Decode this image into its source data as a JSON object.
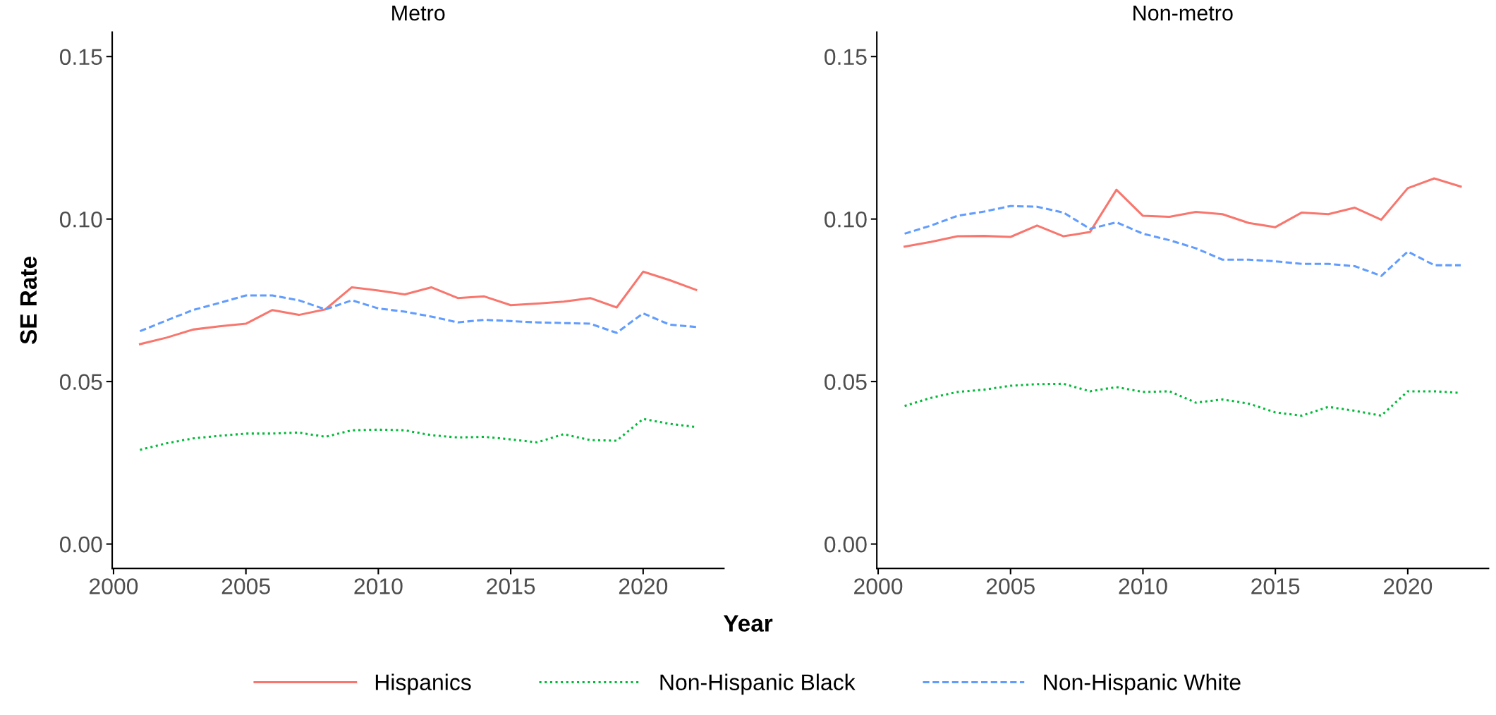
{
  "chart_data": [
    {
      "type": "line",
      "title": "Metro",
      "xlabel": "Year",
      "ylabel": "SE Rate",
      "x": [
        2001,
        2002,
        2003,
        2004,
        2005,
        2006,
        2007,
        2008,
        2009,
        2010,
        2011,
        2012,
        2013,
        2014,
        2015,
        2016,
        2017,
        2018,
        2019,
        2020,
        2021,
        2022
      ],
      "xlim": [
        1999.95,
        2023.05
      ],
      "xticks": [
        2000,
        2005,
        2010,
        2015,
        2020
      ],
      "ylim": [
        -0.0075,
        0.1575
      ],
      "yticks": [
        {
          "value": 0,
          "label": "0.00"
        },
        {
          "value": 0.05,
          "label": "0.05"
        },
        {
          "value": 0.1,
          "label": "0.10"
        },
        {
          "value": 0.15,
          "label": "0.15"
        }
      ],
      "grid": false,
      "legend": "bottom",
      "marker": "none",
      "series": [
        {
          "name": "Hispanics",
          "color": "#f8766d",
          "line_style": "solid",
          "values": [
            0.0615,
            0.0635,
            0.066,
            0.067,
            0.0678,
            0.072,
            0.0705,
            0.0722,
            0.079,
            0.078,
            0.0768,
            0.079,
            0.0757,
            0.0762,
            0.0735,
            0.074,
            0.0746,
            0.0757,
            0.0728,
            0.0838,
            0.0812,
            0.0782
          ]
        },
        {
          "name": "Non-Hispanic Black",
          "color": "#00ba38",
          "line_style": "dotted",
          "values": [
            0.029,
            0.031,
            0.0325,
            0.0333,
            0.034,
            0.034,
            0.0343,
            0.033,
            0.035,
            0.0352,
            0.035,
            0.0335,
            0.0328,
            0.033,
            0.0322,
            0.0313,
            0.0338,
            0.032,
            0.0318,
            0.0385,
            0.037,
            0.036
          ]
        },
        {
          "name": "Non-Hispanic White",
          "color": "#619cff",
          "line_style": "dashed",
          "values": [
            0.0655,
            0.0688,
            0.072,
            0.0742,
            0.0765,
            0.0765,
            0.075,
            0.0722,
            0.075,
            0.0725,
            0.0715,
            0.07,
            0.0682,
            0.069,
            0.0686,
            0.0682,
            0.068,
            0.0678,
            0.065,
            0.071,
            0.0675,
            0.0668
          ]
        }
      ]
    },
    {
      "type": "line",
      "title": "Non-metro",
      "x": [
        2001,
        2002,
        2003,
        2004,
        2005,
        2006,
        2007,
        2008,
        2009,
        2010,
        2011,
        2012,
        2013,
        2014,
        2015,
        2016,
        2017,
        2018,
        2019,
        2020,
        2021,
        2022
      ],
      "xlim": [
        1999.95,
        2023.05
      ],
      "xticks": [
        2000,
        2005,
        2010,
        2015,
        2020
      ],
      "ylim": [
        -0.0075,
        0.1575
      ],
      "yticks": [
        {
          "value": 0,
          "label": "0.00"
        },
        {
          "value": 0.05,
          "label": "0.05"
        },
        {
          "value": 0.1,
          "label": "0.10"
        },
        {
          "value": 0.15,
          "label": "0.15"
        }
      ],
      "grid": false,
      "marker": "none",
      "series": [
        {
          "color": "#f8766d",
          "line_style": "solid",
          "values": [
            0.0915,
            0.093,
            0.0947,
            0.0948,
            0.0945,
            0.098,
            0.0947,
            0.096,
            0.109,
            0.101,
            0.1007,
            0.1022,
            0.1015,
            0.0988,
            0.0975,
            0.102,
            0.1015,
            0.1035,
            0.0998,
            0.1095,
            0.1125,
            0.11
          ]
        },
        {
          "color": "#00ba38",
          "line_style": "dotted",
          "values": [
            0.0425,
            0.045,
            0.0468,
            0.0475,
            0.0487,
            0.0492,
            0.0493,
            0.047,
            0.0483,
            0.0468,
            0.047,
            0.0435,
            0.0445,
            0.0432,
            0.0405,
            0.0395,
            0.0422,
            0.041,
            0.0395,
            0.047,
            0.047,
            0.0465
          ]
        },
        {
          "color": "#619cff",
          "line_style": "dashed",
          "values": [
            0.0955,
            0.098,
            0.101,
            0.1023,
            0.104,
            0.1038,
            0.102,
            0.097,
            0.099,
            0.0955,
            0.0935,
            0.091,
            0.0875,
            0.0875,
            0.087,
            0.0862,
            0.0862,
            0.0855,
            0.0825,
            0.09,
            0.0858,
            0.0858
          ]
        }
      ]
    }
  ]
}
